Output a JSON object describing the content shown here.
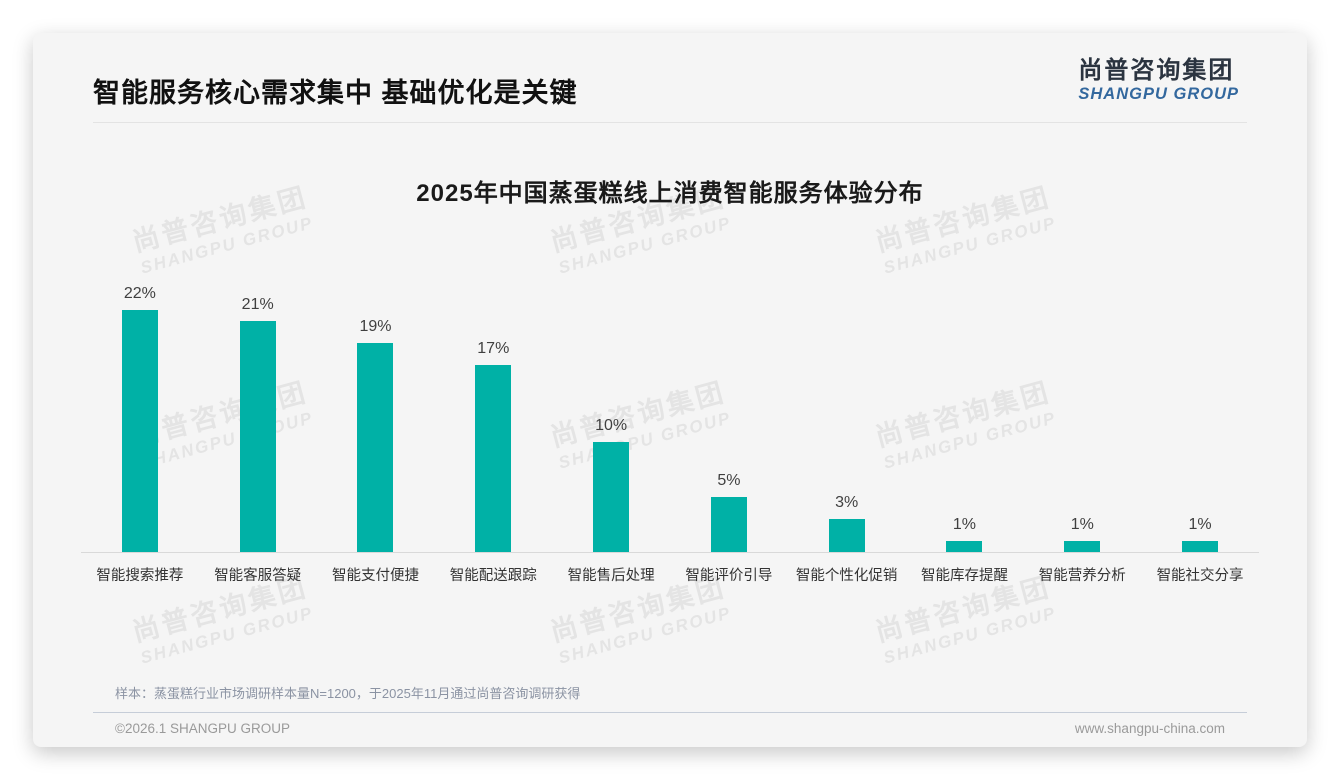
{
  "header": {
    "title": "智能服务核心需求集中 基础优化是关键",
    "logo_cn": "尚普咨询集团",
    "logo_en": "SHANGPU GROUP"
  },
  "watermark": {
    "line1": "尚普咨询集团",
    "line2": "SHANGPU GROUP"
  },
  "chart_data": {
    "type": "bar",
    "title": "2025年中国蒸蛋糕线上消费智能服务体验分布",
    "categories": [
      "智能搜索推荐",
      "智能客服答疑",
      "智能支付便捷",
      "智能配送跟踪",
      "智能售后处理",
      "智能评价引导",
      "智能个性化促销",
      "智能库存提醒",
      "智能营养分析",
      "智能社交分享"
    ],
    "values": [
      22,
      21,
      19,
      17,
      10,
      5,
      3,
      1,
      1,
      1
    ],
    "value_suffix": "%",
    "bar_color": "#00b1a6",
    "ylim": [
      0,
      24
    ],
    "grid": false,
    "legend": "none",
    "value_labels_position": "above-bars"
  },
  "footer": {
    "sample_note": "样本：蒸蛋糕行业市场调研样本量N=1200，于2025年11月通过尚普咨询调研获得",
    "copyright": "©2026.1 SHANGPU GROUP",
    "website": "www.shangpu-china.com"
  }
}
